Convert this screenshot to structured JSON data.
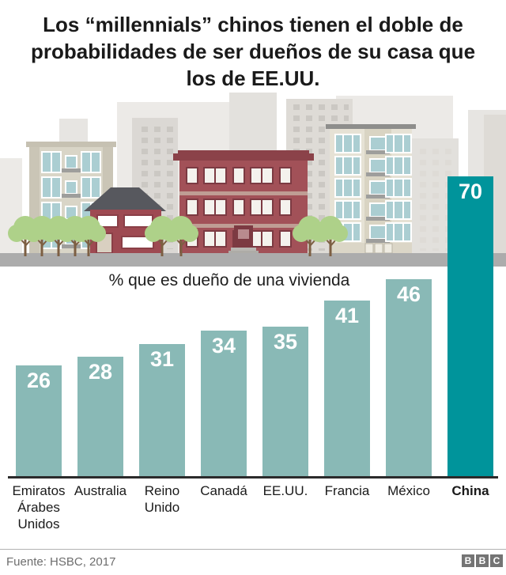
{
  "title": "Los “millennials” chinos tienen el doble de probabilidades de ser dueños de su casa que los de EE.UU.",
  "subtitle": "% que es dueño de una vivienda",
  "chart_data": {
    "type": "bar",
    "categories": [
      "Emiratos Árabes Unidos",
      "Australia",
      "Reino Unido",
      "Canadá",
      "EE.UU.",
      "Francia",
      "México",
      "China"
    ],
    "values": [
      26,
      28,
      31,
      34,
      35,
      41,
      46,
      70
    ],
    "highlight_category": "China",
    "title": "% que es dueño de una vivienda",
    "xlabel": "",
    "ylabel": "",
    "ylim": [
      0,
      70
    ],
    "grid": false,
    "legend": false,
    "value_labels_position": "inside-top"
  },
  "colors": {
    "bar": "#89b9b6",
    "bar_highlight": "#00949b",
    "axis": "#2b2b2b",
    "logo_grey": "#747474"
  },
  "footer": {
    "source": "Fuente: HSBC, 2017",
    "logo_letters": [
      "B",
      "B",
      "C"
    ]
  },
  "illustration": {
    "description": "cityscape-with-houses-and-apartment-buildings"
  }
}
